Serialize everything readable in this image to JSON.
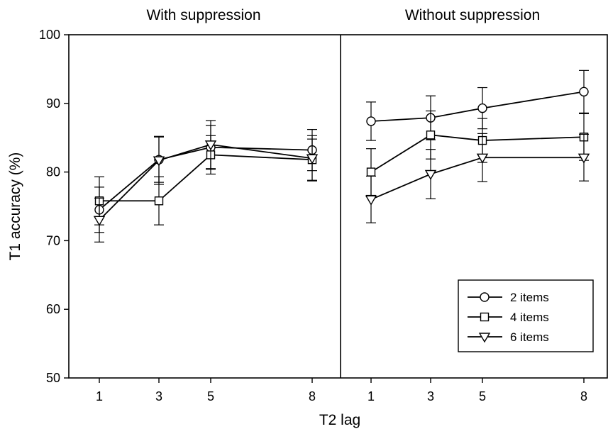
{
  "chart_data": {
    "type": "line",
    "panels": [
      {
        "title": "With suppression",
        "series": [
          {
            "name": "2 items",
            "marker": "circle",
            "values": [
              74.5,
              81.8,
              83.6,
              83.2
            ],
            "errors": [
              3.3,
              3.3,
              3.2,
              3.0
            ]
          },
          {
            "name": "4 items",
            "marker": "square",
            "values": [
              75.8,
              75.8,
              82.5,
              81.8
            ],
            "errors": [
              3.5,
              3.5,
              2.8,
              3.0
            ]
          },
          {
            "name": "6 items",
            "marker": "triangle-down",
            "values": [
              73.0,
              81.7,
              84.0,
              82.0
            ],
            "errors": [
              3.2,
              3.5,
              3.5,
              3.3
            ]
          }
        ]
      },
      {
        "title": "Without suppression",
        "series": [
          {
            "name": "2 items",
            "marker": "circle",
            "values": [
              87.4,
              87.9,
              89.3,
              91.7
            ],
            "errors": [
              2.8,
              3.2,
              3.0,
              3.1
            ]
          },
          {
            "name": "4 items",
            "marker": "square",
            "values": [
              80.0,
              85.4,
              84.6,
              85.1
            ],
            "errors": [
              3.4,
              3.5,
              3.2,
              3.4
            ]
          },
          {
            "name": "6 items",
            "marker": "triangle-down",
            "values": [
              76.0,
              79.7,
              82.1,
              82.1
            ],
            "errors": [
              3.4,
              3.6,
              3.5,
              3.4
            ]
          }
        ]
      }
    ],
    "x": [
      1,
      3,
      5,
      8
    ],
    "x_tick_labels": [
      "1",
      "3",
      "5",
      "8"
    ],
    "xlabel": "T2 lag",
    "ylabel": "T1 accuracy (%)",
    "ylim": [
      50,
      100
    ],
    "y_ticks": [
      50,
      60,
      70,
      80,
      90,
      100
    ],
    "legend": {
      "entries": [
        "2 items",
        "4 items",
        "6 items"
      ],
      "position": "bottom-right of right panel"
    },
    "grid": false,
    "colors": {
      "line": "#000000",
      "marker_fill": "#ffffff",
      "background": "#ffffff"
    }
  }
}
